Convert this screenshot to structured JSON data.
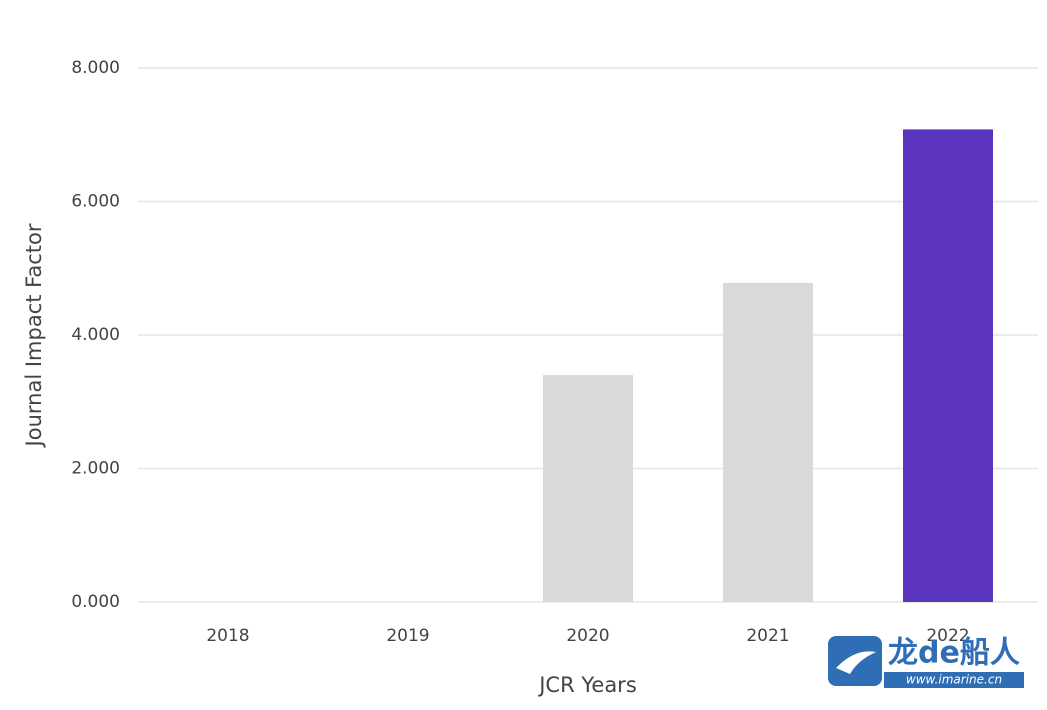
{
  "chart_data": {
    "type": "bar",
    "x_label": "JCR Years",
    "y_label": "Journal Impact Factor",
    "categories": [
      "2018",
      "2019",
      "2020",
      "2021",
      "2022"
    ],
    "values": [
      null,
      null,
      3.4,
      4.78,
      7.08
    ],
    "colors": [
      "#d9d9d9",
      "#d9d9d9",
      "#d9d9d9",
      "#d9d9d9",
      "#5b35be"
    ],
    "ylim": [
      0,
      8
    ],
    "yticks": [
      {
        "value": 0,
        "label": "0.000"
      },
      {
        "value": 2,
        "label": "2.000"
      },
      {
        "value": 4,
        "label": "4.000"
      },
      {
        "value": 6,
        "label": "6.000"
      },
      {
        "value": 8,
        "label": "8.000"
      }
    ],
    "grid": true
  },
  "watermark": {
    "brand": "龙de船人",
    "url": "www.imarine.cn"
  }
}
